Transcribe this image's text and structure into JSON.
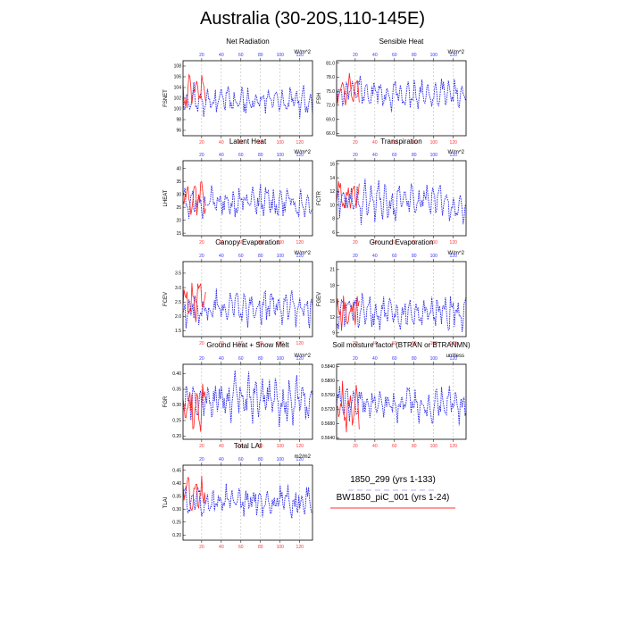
{
  "title": "Australia (30-20S,110-145E)",
  "legend": [
    {
      "label": "1850_299 (yrs 1-133)",
      "color": "#3333ff",
      "style": "dashed"
    },
    {
      "label": "BW1850_piC_001 (yrs 1-24)",
      "color": "#ff3333",
      "style": "solid"
    }
  ],
  "top_axis_ticks": [
    "20",
    "40",
    "60",
    "80",
    "100",
    "120"
  ],
  "bottom_axis_ticks": [
    "20",
    "40",
    "60",
    "80",
    "100",
    "120"
  ],
  "chart_data": [
    {
      "type": "line",
      "title": "Net Radiation",
      "ylabel": "FSNET",
      "units": "W/m^2",
      "yticks": [
        "96",
        "98",
        "100",
        "102",
        "104",
        "106",
        "108"
      ],
      "ylim": [
        95,
        109
      ],
      "xlim": [
        1,
        133
      ],
      "series": [
        {
          "name": "1850_299 (yrs 1-133)",
          "x_range": [
            1,
            133
          ],
          "mean": 101.5,
          "amplitude": 3.5,
          "seed": 11,
          "points": 133
        },
        {
          "name": "BW1850_piC_001 (yrs 1-24)",
          "x_range": [
            1,
            24
          ],
          "mean": 103,
          "amplitude": 5,
          "seed": 21,
          "points": 24
        }
      ]
    },
    {
      "type": "line",
      "title": "Sensible Heat",
      "ylabel": "FSH",
      "units": "W/m^2",
      "yticks": [
        "66.0",
        "69.0",
        "72.0",
        "75.0",
        "78.0",
        "81.0"
      ],
      "ylim": [
        65.5,
        81.5
      ],
      "xlim": [
        1,
        133
      ],
      "series": [
        {
          "name": "1850_299 (yrs 1-133)",
          "x_range": [
            1,
            133
          ],
          "mean": 74.5,
          "amplitude": 4.5,
          "seed": 12,
          "points": 133
        },
        {
          "name": "BW1850_piC_001 (yrs 1-24)",
          "x_range": [
            1,
            24
          ],
          "mean": 75.5,
          "amplitude": 3.5,
          "seed": 22,
          "points": 24
        }
      ]
    },
    {
      "type": "line",
      "title": "Latent Heat",
      "ylabel": "LHEAT",
      "units": "W/m^2",
      "yticks": [
        "15",
        "20",
        "25",
        "30",
        "35",
        "40"
      ],
      "ylim": [
        14,
        43
      ],
      "xlim": [
        1,
        133
      ],
      "series": [
        {
          "name": "1850_299 (yrs 1-133)",
          "x_range": [
            1,
            133
          ],
          "mean": 27,
          "amplitude": 8,
          "seed": 13,
          "points": 133
        },
        {
          "name": "BW1850_piC_001 (yrs 1-24)",
          "x_range": [
            1,
            24
          ],
          "mean": 28,
          "amplitude": 9,
          "seed": 23,
          "points": 24
        }
      ]
    },
    {
      "type": "line",
      "title": "Transpiration",
      "ylabel": "FCTR",
      "units": "W/m^2",
      "yticks": [
        "6",
        "8",
        "10",
        "12",
        "14",
        "16"
      ],
      "ylim": [
        5.5,
        16.5
      ],
      "xlim": [
        1,
        133
      ],
      "series": [
        {
          "name": "1850_299 (yrs 1-133)",
          "x_range": [
            1,
            133
          ],
          "mean": 10.5,
          "amplitude": 3.5,
          "seed": 14,
          "points": 133
        },
        {
          "name": "BW1850_piC_001 (yrs 1-24)",
          "x_range": [
            1,
            24
          ],
          "mean": 11.5,
          "amplitude": 3,
          "seed": 24,
          "points": 24
        }
      ]
    },
    {
      "type": "line",
      "title": "Canopy Evaporation",
      "ylabel": "FCEV",
      "units": "W/m^2",
      "yticks": [
        "1.5",
        "2.0",
        "2.5",
        "3.0",
        "3.5"
      ],
      "ylim": [
        1.3,
        3.9
      ],
      "xlim": [
        1,
        133
      ],
      "series": [
        {
          "name": "1850_299 (yrs 1-133)",
          "x_range": [
            1,
            133
          ],
          "mean": 2.3,
          "amplitude": 0.8,
          "seed": 15,
          "points": 133
        },
        {
          "name": "BW1850_piC_001 (yrs 1-24)",
          "x_range": [
            1,
            24
          ],
          "mean": 2.6,
          "amplitude": 1.0,
          "seed": 25,
          "points": 24
        }
      ]
    },
    {
      "type": "line",
      "title": "Ground Evaporation",
      "ylabel": "FGEV",
      "units": "W/m^2",
      "yticks": [
        "9",
        "12",
        "15",
        "18",
        "21"
      ],
      "ylim": [
        8.3,
        22.5
      ],
      "xlim": [
        1,
        133
      ],
      "series": [
        {
          "name": "1850_299 (yrs 1-133)",
          "x_range": [
            1,
            133
          ],
          "mean": 13,
          "amplitude": 4.5,
          "seed": 16,
          "points": 133
        },
        {
          "name": "BW1850_piC_001 (yrs 1-24)",
          "x_range": [
            1,
            24
          ],
          "mean": 13.5,
          "amplitude": 5,
          "seed": 26,
          "points": 24
        }
      ]
    },
    {
      "type": "line",
      "title": "Ground Heat + Snow Melt",
      "ylabel": "FGR",
      "units": "W/m^2",
      "yticks": [
        "0.20",
        "0.25",
        "0.30",
        "0.35",
        "0.40"
      ],
      "ylim": [
        0.19,
        0.43
      ],
      "xlim": [
        1,
        133
      ],
      "series": [
        {
          "name": "1850_299 (yrs 1-133)",
          "x_range": [
            1,
            133
          ],
          "mean": 0.32,
          "amplitude": 0.09,
          "seed": 17,
          "points": 133
        },
        {
          "name": "BW1850_piC_001 (yrs 1-24)",
          "x_range": [
            1,
            24
          ],
          "mean": 0.3,
          "amplitude": 0.1,
          "seed": 27,
          "points": 24
        }
      ]
    },
    {
      "type": "line",
      "title": "Soil moisture factor (BTRAN or BTRANMN)",
      "ylabel": "",
      "units": "unitless",
      "yticks": [
        "0.5640",
        "0.5680",
        "0.5720",
        "0.5760",
        "0.5800",
        "0.5840"
      ],
      "ylim": [
        0.5636,
        0.5846
      ],
      "xlim": [
        1,
        133
      ],
      "series": [
        {
          "name": "1850_299 (yrs 1-133)",
          "x_range": [
            1,
            133
          ],
          "mean": 0.5735,
          "amplitude": 0.006,
          "seed": 18,
          "points": 133
        },
        {
          "name": "BW1850_piC_001 (yrs 1-24)",
          "x_range": [
            1,
            24
          ],
          "mean": 0.5725,
          "amplitude": 0.008,
          "seed": 28,
          "points": 24
        }
      ]
    },
    {
      "type": "line",
      "title": "Total LAI",
      "ylabel": "TLAI",
      "units": "m2/m2",
      "yticks": [
        "0.20",
        "0.25",
        "0.30",
        "0.35",
        "0.40",
        "0.45"
      ],
      "ylim": [
        0.18,
        0.47
      ],
      "xlim": [
        1,
        133
      ],
      "series": [
        {
          "name": "1850_299 (yrs 1-133)",
          "x_range": [
            1,
            133
          ],
          "mean": 0.33,
          "amplitude": 0.08,
          "seed": 19,
          "points": 133
        },
        {
          "name": "BW1850_piC_001 (yrs 1-24)",
          "x_range": [
            1,
            24
          ],
          "mean": 0.36,
          "amplitude": 0.09,
          "seed": 29,
          "points": 24
        }
      ]
    }
  ]
}
